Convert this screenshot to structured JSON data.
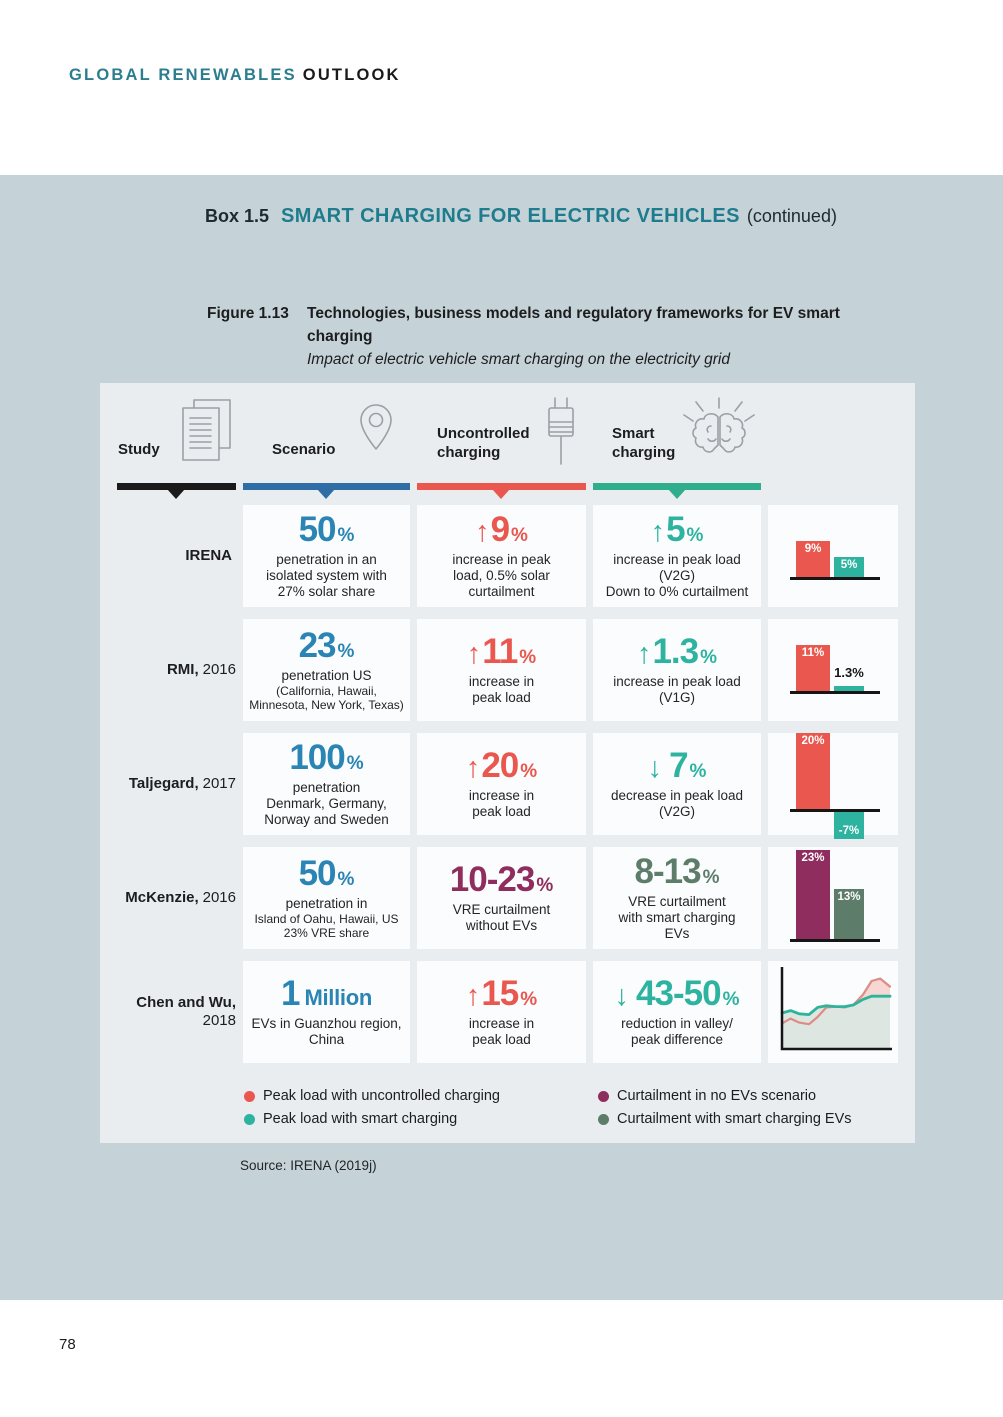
{
  "page": {
    "brand_part1": "GLOBAL RENEWABLES",
    "brand_part2": "OUTLOOK",
    "page_number": "78"
  },
  "box": {
    "label": "Box 1.5",
    "title": "SMART CHARGING FOR ELECTRIC VEHICLES",
    "continued": "(continued)"
  },
  "figure": {
    "label": "Figure 1.13",
    "title": "Technologies, business models and regulatory frameworks for EV smart charging",
    "subtitle": "Impact of electric vehicle smart charging on the electricity grid",
    "source": "Source: IRENA (2019j)"
  },
  "columns": {
    "study": "Study",
    "scenario": "Scenario",
    "uncontrolled": "Uncontrolled charging",
    "smart": "Smart charging"
  },
  "rows": [
    {
      "study_name": "IRENA",
      "study_year": "",
      "scenario": {
        "arrow": "",
        "big": "50",
        "unit": "%",
        "lines": [
          "penetration in an",
          "isolated system with",
          "27% solar share"
        ]
      },
      "uncontrolled": {
        "arrow": "↑",
        "big": "9",
        "unit": "%",
        "lines": [
          "increase in peak",
          "load, 0.5% solar",
          "curtailment"
        ]
      },
      "smart": {
        "arrow": "↑",
        "big": "5",
        "unit": "%",
        "lines": [
          "increase in peak load",
          "(V2G)",
          "Down to 0% curtailment"
        ]
      }
    },
    {
      "study_name": "RMI,",
      "study_year": "2016",
      "scenario": {
        "arrow": "",
        "big": "23",
        "unit": "%",
        "lines": [
          "penetration US",
          "(California, Hawaii,",
          "Minnesota, New York, Texas)"
        ]
      },
      "uncontrolled": {
        "arrow": "↑",
        "big": "11",
        "unit": "%",
        "lines": [
          "increase in",
          "peak load"
        ]
      },
      "smart": {
        "arrow": "↑",
        "big": "1.3",
        "unit": "%",
        "lines": [
          "increase in peak load",
          "(V1G)"
        ]
      }
    },
    {
      "study_name": "Taljegard,",
      "study_year": "2017",
      "scenario": {
        "arrow": "",
        "big": "100",
        "unit": "%",
        "lines": [
          "penetration",
          "Denmark, Germany,",
          "Norway and Sweden"
        ]
      },
      "uncontrolled": {
        "arrow": "↑",
        "big": "20",
        "unit": "%",
        "lines": [
          "increase in",
          "peak load"
        ]
      },
      "smart": {
        "arrow": "↓",
        "big": "7",
        "unit": "%",
        "lines": [
          "decrease in peak load",
          "(V2G)"
        ]
      }
    },
    {
      "study_name": "McKenzie,",
      "study_year": "2016",
      "scenario": {
        "arrow": "",
        "big": "50",
        "unit": "%",
        "lines": [
          "penetration in",
          "Island of Oahu, Hawaii, US",
          "23% VRE share"
        ]
      },
      "uncontrolled": {
        "arrow": "",
        "big": "10-23",
        "unit": "%",
        "lines": [
          "VRE curtailment",
          "without EVs"
        ]
      },
      "smart": {
        "arrow": "",
        "big": "8-13",
        "unit": "%",
        "lines": [
          "VRE curtailment",
          "with smart charging",
          "EVs"
        ]
      }
    },
    {
      "study_name": "Chen and Wu,",
      "study_year": "2018",
      "scenario": {
        "arrow": "",
        "big": "1",
        "unit": "Million",
        "lines": [
          "EVs in Guanzhou region,",
          "China"
        ]
      },
      "uncontrolled": {
        "arrow": "↑",
        "big": "15",
        "unit": "%",
        "lines": [
          "increase in",
          "peak load"
        ]
      },
      "smart": {
        "arrow": "↓",
        "big": "43-50",
        "unit": "%",
        "lines": [
          "reduction in valley/",
          "peak difference"
        ]
      }
    }
  ],
  "legend": {
    "items": [
      {
        "label": "Peak load with uncontrolled charging",
        "series": "peak_uncontrolled"
      },
      {
        "label": "Peak load with smart charging",
        "series": "peak_smart"
      },
      {
        "label": "Curtailment in no EVs scenario",
        "series": "curtail_no_ev"
      },
      {
        "label": "Curtailment with smart charging EVs",
        "series": "curtail_smart"
      }
    ]
  },
  "colors": {
    "band_bg": "#c5d3d8",
    "panel_bg": "#e9edf0",
    "card_bg": "#fbfcfd",
    "brand_teal": "#2c7d8e",
    "box_title_teal": "#1e7c8d",
    "scenario_number_blue": "#2a84b4",
    "scenario_bar_blue": "#2e6da5",
    "red": "#e9574e",
    "teal": "#2db3a0",
    "smart_bar_green": "#2fae8e",
    "maroon": "#8e2d5e",
    "dark_green": "#5d7d6a",
    "black_bar": "#1a1a1a"
  },
  "chart_data": [
    {
      "row": "IRENA",
      "type": "bar",
      "unit": "% change in peak load",
      "scale": 4.0,
      "baseline": 72,
      "bars": [
        {
          "series": "peak_uncontrolled",
          "value": 9,
          "label": "9%",
          "label_pos": "in"
        },
        {
          "series": "peak_smart",
          "value": 5,
          "label": "5%",
          "label_pos": "in"
        }
      ]
    },
    {
      "row": "RMI, 2016",
      "type": "bar",
      "unit": "% change in peak load",
      "scale": 4.2,
      "baseline": 72,
      "bars": [
        {
          "series": "peak_uncontrolled",
          "value": 11,
          "label": "11%",
          "label_pos": "in"
        },
        {
          "series": "peak_smart",
          "value": 1.3,
          "label": "1.3%",
          "label_pos": "out"
        }
      ]
    },
    {
      "row": "Taljegard, 2017",
      "type": "bar",
      "unit": "% change in peak load",
      "scale": 3.8,
      "baseline": 76,
      "bars": [
        {
          "series": "peak_uncontrolled",
          "value": 20,
          "label": "20%",
          "label_pos": "in"
        },
        {
          "series": "peak_smart",
          "value": -7,
          "label": "-7%",
          "label_pos": "in"
        }
      ]
    },
    {
      "row": "McKenzie, 2016",
      "type": "bar",
      "unit": "% VRE curtailment",
      "scale": 3.85,
      "baseline": 92,
      "bars": [
        {
          "series": "curtail_no_ev",
          "value": 23,
          "label": "23%",
          "label_pos": "in"
        },
        {
          "series": "curtail_smart",
          "value": 13,
          "label": "13%",
          "label_pos": "in"
        }
      ]
    },
    {
      "row": "Chen and Wu, 2018",
      "type": "area",
      "note": "load curve, normalized 0-100",
      "x": [
        0,
        8,
        16,
        25,
        33,
        41,
        50,
        58,
        66,
        75,
        83,
        91,
        100
      ],
      "series": [
        {
          "name": "peak_uncontrolled",
          "values": [
            32,
            38,
            33,
            31,
            40,
            52,
            53,
            52,
            55,
            68,
            85,
            88,
            78
          ]
        },
        {
          "name": "peak_smart",
          "values": [
            45,
            48,
            44,
            43,
            52,
            54,
            53,
            53,
            55,
            62,
            66,
            66,
            66
          ]
        }
      ]
    }
  ]
}
